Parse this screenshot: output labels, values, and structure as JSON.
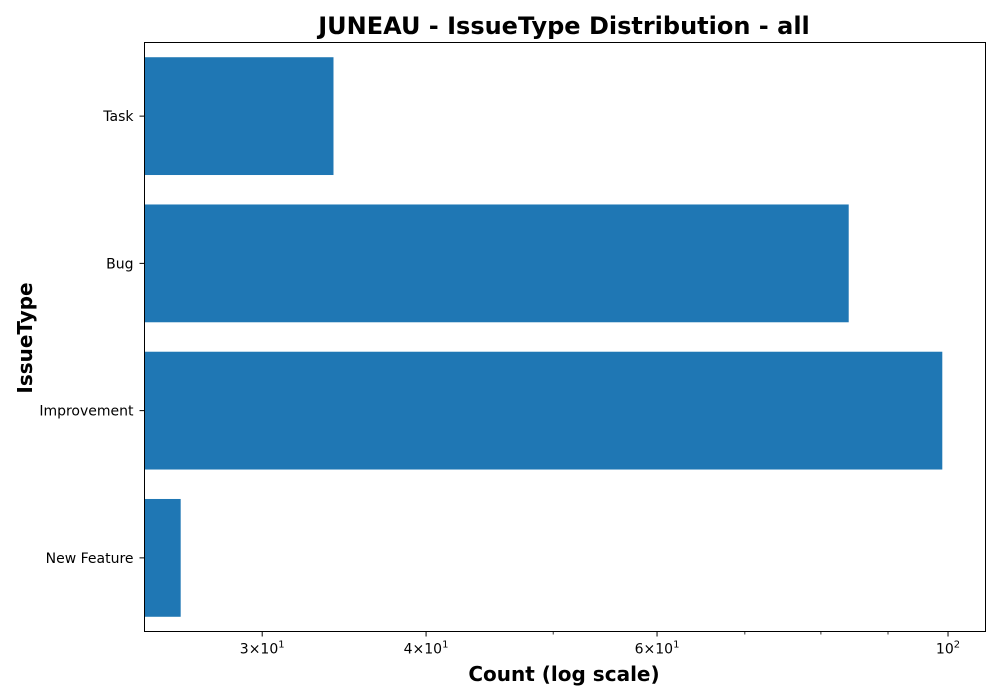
{
  "chart_data": {
    "type": "bar",
    "orientation": "horizontal",
    "title": "JUNEAU - IssueType Distribution - all",
    "xlabel": "Count (log scale)",
    "ylabel": "IssueType",
    "xscale": "log",
    "xlim": [
      24.4,
      106.8
    ],
    "categories": [
      "Task",
      "Bug",
      "Improvement",
      "New Feature"
    ],
    "values": [
      34,
      84,
      99,
      26
    ],
    "xticks": [
      {
        "value": 30,
        "mantissa": "3",
        "base": "10",
        "exp": "1"
      },
      {
        "value": 40,
        "mantissa": "4",
        "base": "10",
        "exp": "1"
      },
      {
        "value": 60,
        "mantissa": "6",
        "base": "10",
        "exp": "1"
      },
      {
        "value": 100,
        "mantissa": "",
        "base": "10",
        "exp": "2"
      }
    ],
    "minor_xticks": [
      50,
      70,
      80,
      90
    ],
    "bar_color": "#1f77b4",
    "grid": false,
    "legend": false
  }
}
